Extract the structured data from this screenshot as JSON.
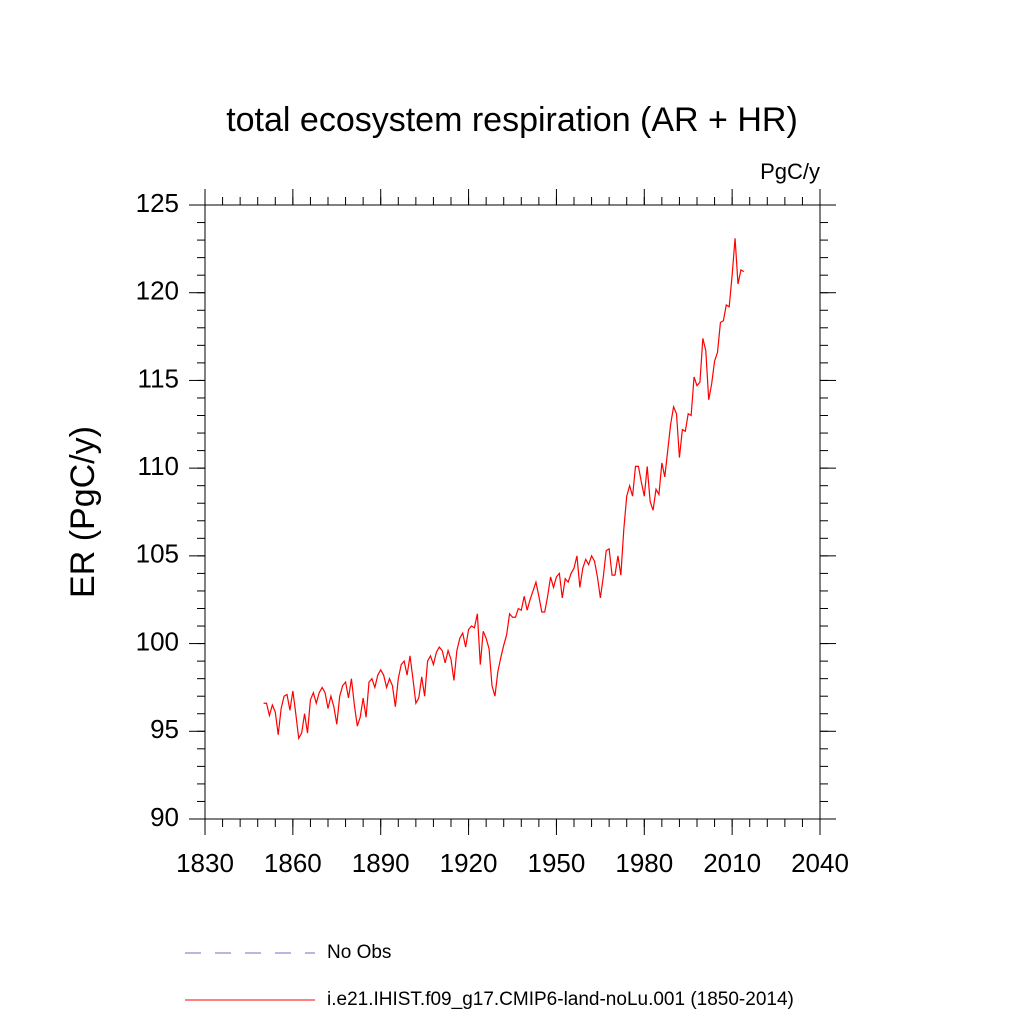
{
  "chart_data": {
    "type": "line",
    "title": "total ecosystem respiration (AR + HR)",
    "units": "PgC/y",
    "ylabel": "ER  (PgC/y)",
    "x": [
      1850,
      1851,
      1852,
      1853,
      1854,
      1855,
      1856,
      1857,
      1858,
      1859,
      1860,
      1861,
      1862,
      1863,
      1864,
      1865,
      1866,
      1867,
      1868,
      1869,
      1870,
      1871,
      1872,
      1873,
      1874,
      1875,
      1876,
      1877,
      1878,
      1879,
      1880,
      1881,
      1882,
      1883,
      1884,
      1885,
      1886,
      1887,
      1888,
      1889,
      1890,
      1891,
      1892,
      1893,
      1894,
      1895,
      1896,
      1897,
      1898,
      1899,
      1900,
      1901,
      1902,
      1903,
      1904,
      1905,
      1906,
      1907,
      1908,
      1909,
      1910,
      1911,
      1912,
      1913,
      1914,
      1915,
      1916,
      1917,
      1918,
      1919,
      1920,
      1921,
      1922,
      1923,
      1924,
      1925,
      1926,
      1927,
      1928,
      1929,
      1930,
      1931,
      1932,
      1933,
      1934,
      1935,
      1936,
      1937,
      1938,
      1939,
      1940,
      1941,
      1942,
      1943,
      1944,
      1945,
      1946,
      1947,
      1948,
      1949,
      1950,
      1951,
      1952,
      1953,
      1954,
      1955,
      1956,
      1957,
      1958,
      1959,
      1960,
      1961,
      1962,
      1963,
      1964,
      1965,
      1966,
      1967,
      1968,
      1969,
      1970,
      1971,
      1972,
      1973,
      1974,
      1975,
      1976,
      1977,
      1978,
      1979,
      1980,
      1981,
      1982,
      1983,
      1984,
      1985,
      1986,
      1987,
      1988,
      1989,
      1990,
      1991,
      1992,
      1993,
      1994,
      1995,
      1996,
      1997,
      1998,
      1999,
      2000,
      2001,
      2002,
      2003,
      2004,
      2005,
      2006,
      2007,
      2008,
      2009,
      2010,
      2011,
      2012,
      2013,
      2014
    ],
    "series": [
      {
        "name": "i.e21.IHIST.f09_g17.CMIP6-land-noLu.001 (1850-2014)",
        "color": "#ff0000",
        "values": [
          96.6,
          96.6,
          95.9,
          96.5,
          96.1,
          94.8,
          96.3,
          97.0,
          97.1,
          96.2,
          97.3,
          96.0,
          94.6,
          94.9,
          96.0,
          94.9,
          96.8,
          97.2,
          96.6,
          97.2,
          97.5,
          97.2,
          96.3,
          97.0,
          96.4,
          95.4,
          97.0,
          97.6,
          97.8,
          96.9,
          98.0,
          96.5,
          95.3,
          95.8,
          96.9,
          95.8,
          97.8,
          98.0,
          97.5,
          98.2,
          98.5,
          98.2,
          97.5,
          98.0,
          97.6,
          96.4,
          98.0,
          98.8,
          99.0,
          98.2,
          99.3,
          98.0,
          96.6,
          96.9,
          98.1,
          97.0,
          99.0,
          99.3,
          98.8,
          99.5,
          99.8,
          99.6,
          98.9,
          99.6,
          99.1,
          97.9,
          99.6,
          100.3,
          100.6,
          99.8,
          100.8,
          101.0,
          100.9,
          101.7,
          98.8,
          100.7,
          100.3,
          99.7,
          97.6,
          97.0,
          98.4,
          99.2,
          99.9,
          100.5,
          101.7,
          101.5,
          101.5,
          102.0,
          101.9,
          102.7,
          101.9,
          102.5,
          103.0,
          103.5,
          102.7,
          101.8,
          101.8,
          102.7,
          103.8,
          103.2,
          103.8,
          104.0,
          102.6,
          103.7,
          103.5,
          104.0,
          104.3,
          105.0,
          103.2,
          104.3,
          104.8,
          104.5,
          105.0,
          104.7,
          103.8,
          102.6,
          103.8,
          105.3,
          105.4,
          103.9,
          103.9,
          105.0,
          103.9,
          106.5,
          108.4,
          109.0,
          108.4,
          110.1,
          110.1,
          109.2,
          108.4,
          110.1,
          108.1,
          107.6,
          108.8,
          108.5,
          110.3,
          109.5,
          111.0,
          112.5,
          113.5,
          113.1,
          110.6,
          112.2,
          112.1,
          113.1,
          113.0,
          115.2,
          114.7,
          114.9,
          117.4,
          116.7,
          113.9,
          114.8,
          116.1,
          116.6,
          118.3,
          118.4,
          119.3,
          119.2,
          121.0,
          123.1,
          120.5,
          121.3,
          121.2
        ]
      }
    ],
    "legend_extra": [
      {
        "name": "No Obs",
        "color": "#7b68c8",
        "dash": true
      }
    ],
    "xlim": [
      1830,
      2040
    ],
    "xticks": [
      1830,
      1860,
      1890,
      1920,
      1950,
      1980,
      2010,
      2040
    ],
    "x_minor_step": 6,
    "ylim": [
      90,
      125
    ],
    "yticks": [
      90,
      95,
      100,
      105,
      110,
      115,
      120,
      125
    ],
    "y_minor_step": 1
  }
}
